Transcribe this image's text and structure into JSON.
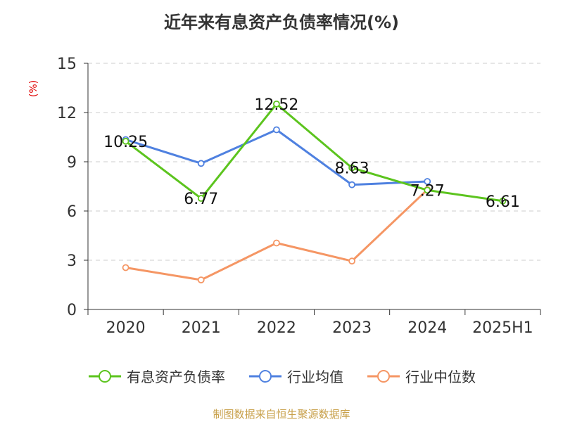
{
  "title": "近年来有息资产负债率情况(%)",
  "source": "制图数据来自恒生聚源数据库",
  "colors": {
    "series1": "#5cc41e",
    "series2": "#4f81e0",
    "series3": "#f59664"
  },
  "chart_data": {
    "type": "line",
    "title": "近年来有息资产负债率情况(%)",
    "ylabel": "(%)",
    "xlabel": "",
    "ylim": [
      0,
      15
    ],
    "yticks": [
      "0",
      "3",
      "6",
      "9",
      "12",
      "15"
    ],
    "categories": [
      "2020",
      "2021",
      "2022",
      "2023",
      "2024",
      "2025H1"
    ],
    "grid": true,
    "legend_position": "bottom",
    "series": [
      {
        "name": "有息资产负债率",
        "color": "#5cc41e",
        "values": [
          10.25,
          6.77,
          12.52,
          8.63,
          7.27,
          6.61
        ],
        "labels": [
          "10.25",
          "6.77",
          "12.52",
          "8.63",
          "7.27",
          "6.61"
        ]
      },
      {
        "name": "行业均值",
        "color": "#4f81e0",
        "values": [
          10.35,
          8.9,
          10.95,
          7.6,
          7.8,
          null
        ]
      },
      {
        "name": "行业中位数",
        "color": "#f59664",
        "values": [
          2.55,
          1.8,
          4.05,
          2.95,
          7.3,
          null
        ]
      }
    ]
  }
}
